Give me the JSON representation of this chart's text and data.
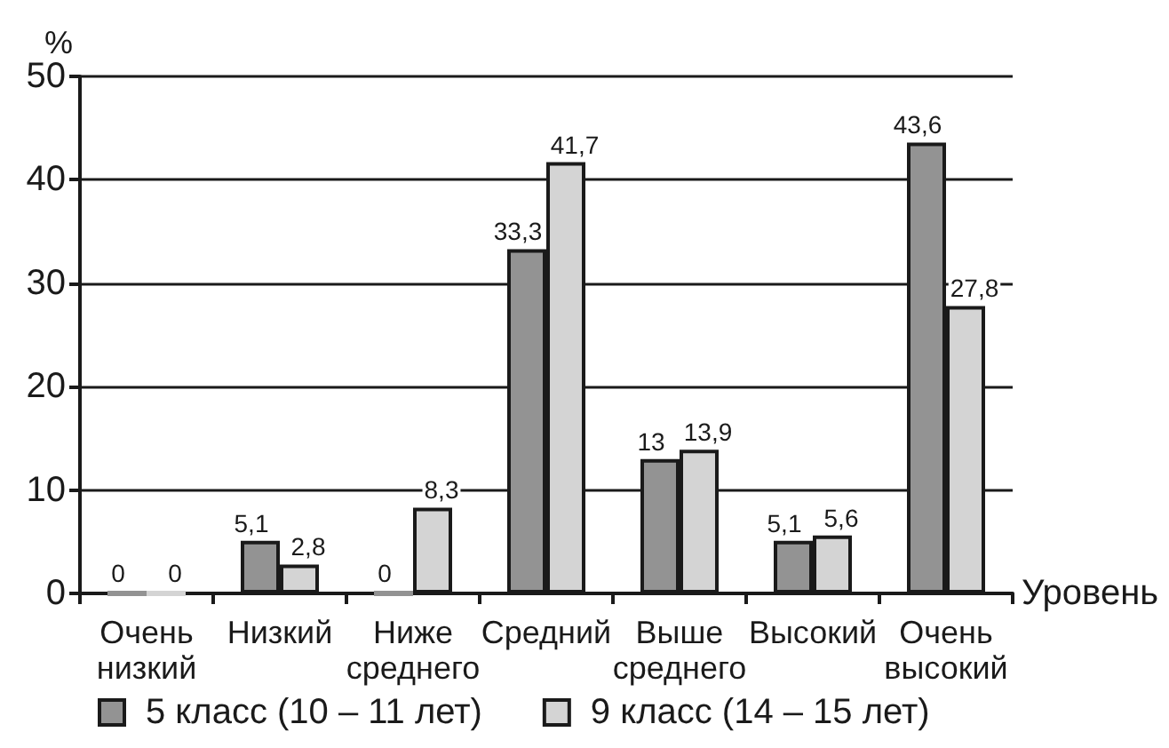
{
  "chart_data": {
    "type": "bar",
    "ylabel": "%",
    "xlabel": "Уровень",
    "categories": [
      "Очень низкий",
      "Низкий",
      "Ниже среднего",
      "Средний",
      "Выше среднего",
      "Высокий",
      "Очень высокий"
    ],
    "series": [
      {
        "name": "5 класс (10 – 11 лет)",
        "color": "#939393",
        "values": [
          0,
          5.1,
          0,
          33.3,
          13,
          5.1,
          43.6
        ],
        "value_labels": [
          "0",
          "5,1",
          "0",
          "33,3",
          "13",
          "5,1",
          "43,6"
        ]
      },
      {
        "name": "9 класс (14 – 15 лет)",
        "color": "#d4d4d4",
        "values": [
          0,
          2.8,
          8.3,
          41.7,
          13.9,
          5.6,
          27.8
        ],
        "value_labels": [
          "0",
          "2,8",
          "8,3",
          "41,7",
          "13,9",
          "5,6",
          "27,8"
        ]
      }
    ],
    "ylim": [
      0,
      50
    ],
    "yticks": [
      0,
      10,
      20,
      30,
      40,
      50
    ],
    "grid": "y",
    "legend": "bottom"
  }
}
